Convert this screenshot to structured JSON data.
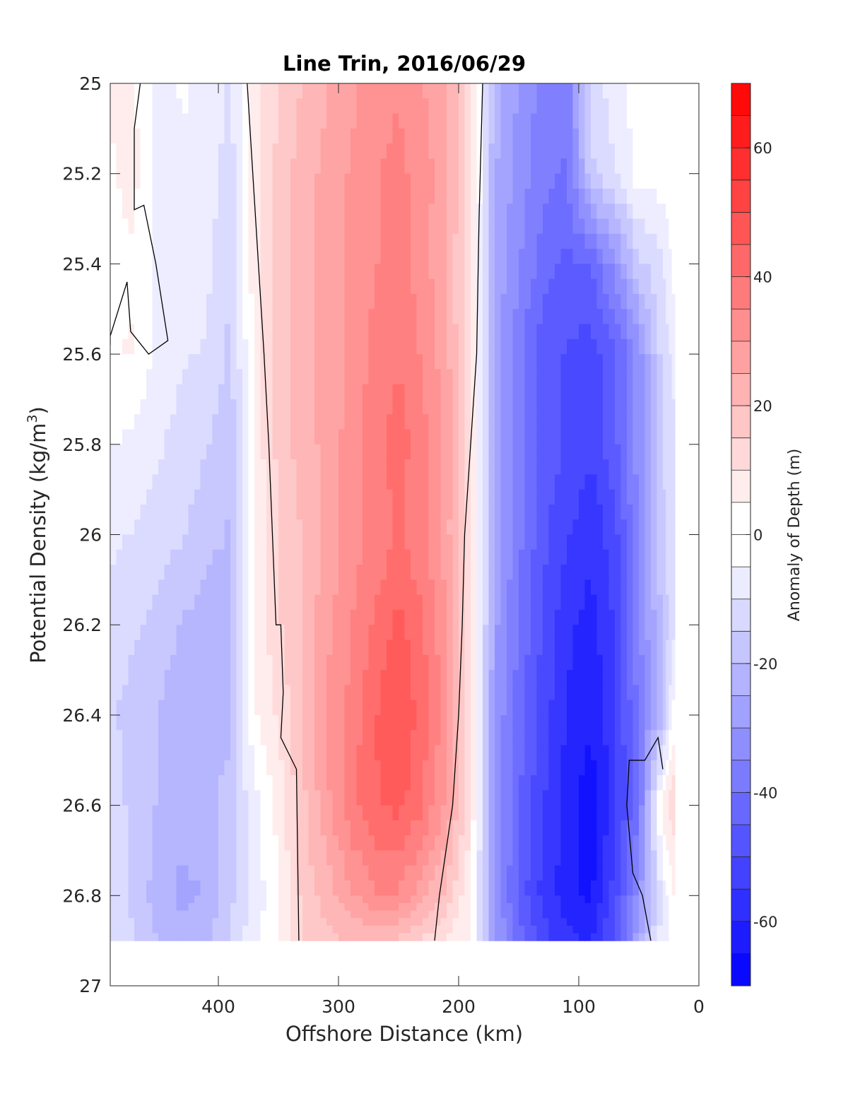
{
  "chart_data": {
    "type": "heatmap",
    "title": "Line Trin, 2016/06/29",
    "xlabel": "Offshore Distance (km)",
    "ylabel_main": "Potential Density (kg/m",
    "ylabel_sup": "3",
    "ylabel_close": ")",
    "colorbar_label": "Anomaly of Depth (m)",
    "x_reversed": true,
    "xlim": [
      490,
      0
    ],
    "ylim": [
      27,
      25
    ],
    "y_reversed": true,
    "x_ticks": [
      400,
      300,
      200,
      100,
      0
    ],
    "x_tick_labels": [
      "400",
      "300",
      "200",
      "100",
      "0"
    ],
    "y_ticks": [
      25,
      25.2,
      25.4,
      25.6,
      25.8,
      26,
      26.2,
      26.4,
      26.6,
      26.8,
      27
    ],
    "y_tick_labels": [
      "25",
      "25.2",
      "25.4",
      "25.6",
      "25.8",
      "26",
      "26.2",
      "26.4",
      "26.6",
      "26.8",
      "27"
    ],
    "colorbar": {
      "min": -70,
      "max": 70,
      "step": 5,
      "ticks": [
        60,
        40,
        20,
        0,
        -20,
        -40,
        -60
      ],
      "tick_labels": [
        "60",
        "40",
        "20",
        "0",
        "-20",
        "-40",
        "-60"
      ],
      "negative_color": "#0000ff",
      "positive_color": "#ff0000",
      "neutral_color": "#ffffff"
    },
    "data_extent": {
      "x_min": 20,
      "x_max": 490,
      "y_max": 26.9
    },
    "x": [
      490,
      470,
      450,
      430,
      410,
      390,
      370,
      350,
      330,
      310,
      290,
      270,
      250,
      230,
      210,
      190,
      170,
      150,
      130,
      110,
      90,
      70,
      50,
      30,
      20
    ],
    "y": [
      25.0,
      25.2,
      25.4,
      25.6,
      25.8,
      26.0,
      26.2,
      26.4,
      26.6,
      26.8,
      26.9
    ],
    "values": [
      [
        3,
        3,
        -5,
        -2,
        -4,
        -8,
        6,
        12,
        18,
        22,
        26,
        30,
        32,
        28,
        22,
        10,
        -20,
        -28,
        -34,
        -36,
        -10,
        -5,
        0,
        0,
        0
      ],
      [
        2,
        4,
        -5,
        -3,
        -5,
        -10,
        6,
        14,
        20,
        24,
        28,
        32,
        34,
        30,
        24,
        10,
        -22,
        -30,
        -36,
        -38,
        -14,
        -8,
        0,
        0,
        0
      ],
      [
        1,
        2,
        -4,
        -5,
        -6,
        -12,
        5,
        14,
        20,
        24,
        28,
        32,
        35,
        30,
        22,
        8,
        -24,
        -32,
        -40,
        -44,
        -42,
        -30,
        -14,
        -8,
        0
      ],
      [
        2,
        3,
        -5,
        -7,
        -8,
        -14,
        4,
        15,
        20,
        24,
        28,
        34,
        37,
        32,
        24,
        8,
        -24,
        -36,
        -45,
        -48,
        -50,
        -44,
        -30,
        -10,
        -6
      ],
      [
        -2,
        -4,
        -7,
        -9,
        -12,
        -16,
        4,
        14,
        20,
        24,
        30,
        36,
        40,
        34,
        26,
        10,
        -24,
        -36,
        -44,
        -48,
        -52,
        -44,
        -30,
        -12,
        -8
      ],
      [
        -6,
        -8,
        -10,
        -12,
        -16,
        -18,
        2,
        12,
        18,
        24,
        30,
        34,
        38,
        34,
        24,
        10,
        -24,
        -36,
        -46,
        -52,
        -56,
        -50,
        -32,
        -14,
        -8
      ],
      [
        -10,
        -12,
        -14,
        -18,
        -20,
        -20,
        2,
        12,
        18,
        26,
        32,
        38,
        44,
        38,
        28,
        10,
        -26,
        -38,
        -48,
        -56,
        -60,
        -52,
        -34,
        -16,
        -8
      ],
      [
        -12,
        -14,
        -18,
        -22,
        -22,
        -20,
        2,
        8,
        18,
        28,
        34,
        42,
        48,
        40,
        30,
        10,
        -28,
        -40,
        -50,
        -58,
        -62,
        -54,
        -36,
        -18,
        2
      ],
      [
        -10,
        -14,
        -18,
        -20,
        -20,
        -14,
        -4,
        4,
        16,
        26,
        36,
        42,
        44,
        38,
        26,
        8,
        -28,
        -42,
        -52,
        -60,
        -66,
        -54,
        -38,
        6,
        12
      ],
      [
        -10,
        -14,
        -20,
        -24,
        -22,
        -14,
        -6,
        2,
        14,
        20,
        26,
        32,
        32,
        24,
        16,
        2,
        -28,
        -44,
        -54,
        -60,
        -64,
        -50,
        -30,
        -6,
        3
      ],
      [
        -8,
        -12,
        -18,
        -20,
        -18,
        -12,
        -4,
        2,
        12,
        16,
        18,
        18,
        16,
        12,
        6,
        2,
        -26,
        -40,
        -50,
        -56,
        -58,
        -46,
        -24,
        -4,
        0
      ]
    ],
    "zero_contours": [
      {
        "x": [
          465,
          470,
          470,
          462,
          452,
          442,
          458,
          473,
          476,
          490,
          490
        ],
        "y": [
          25.0,
          25.1,
          25.28,
          25.27,
          25.4,
          25.57,
          25.6,
          25.55,
          25.44,
          25.56,
          25.58
        ]
      },
      {
        "x": [
          376,
          369,
          362,
          358,
          355,
          352,
          350,
          348,
          346,
          348,
          335,
          333
        ],
        "y": [
          25.0,
          25.3,
          25.6,
          25.8,
          26.0,
          26.2,
          26.2,
          26.2,
          26.35,
          26.45,
          26.52,
          26.9
        ]
      },
      {
        "x": [
          180,
          183,
          185,
          190,
          195,
          197,
          200,
          205,
          216,
          220
        ],
        "y": [
          25.0,
          25.3,
          25.6,
          25.8,
          26.0,
          26.2,
          26.4,
          26.6,
          26.8,
          26.9
        ]
      },
      {
        "x": [
          40,
          47,
          55,
          60,
          58,
          45,
          34,
          30
        ],
        "y": [
          26.9,
          26.8,
          26.75,
          26.6,
          26.5,
          26.5,
          26.45,
          26.52
        ]
      }
    ]
  }
}
